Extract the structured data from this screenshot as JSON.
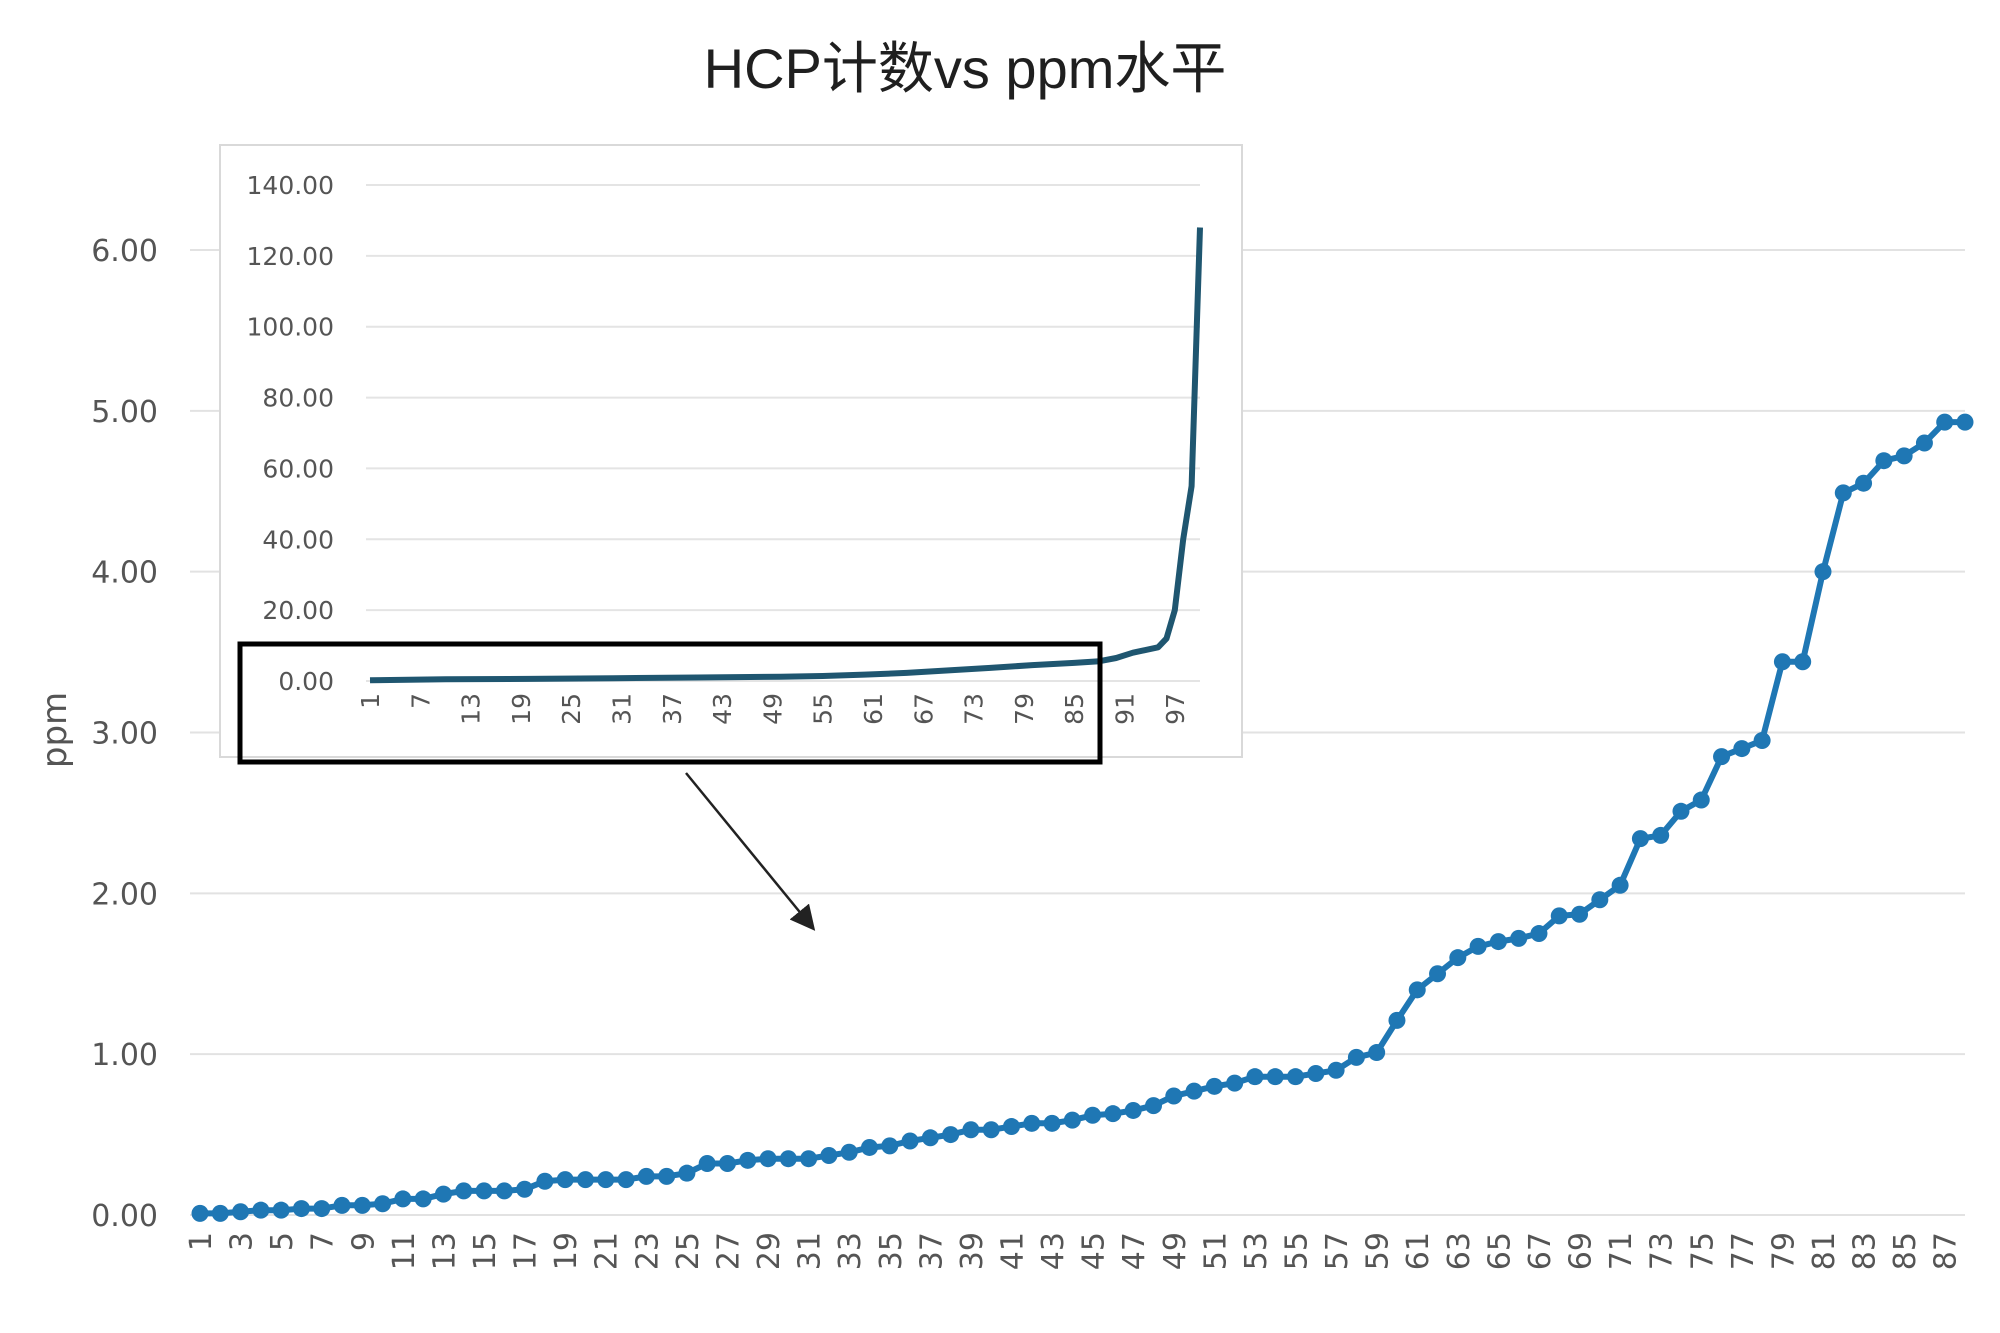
{
  "chart_data": [
    {
      "type": "line",
      "title": "HCP计数vs ppm水平",
      "ylabel": "ppm",
      "ylim": [
        0,
        6
      ],
      "yticks": [
        "0.00",
        "1.00",
        "2.00",
        "3.00",
        "4.00",
        "5.00",
        "6.00"
      ],
      "x": [
        1,
        2,
        3,
        4,
        5,
        6,
        7,
        8,
        9,
        10,
        11,
        12,
        13,
        14,
        15,
        16,
        17,
        18,
        19,
        20,
        21,
        22,
        23,
        24,
        25,
        26,
        27,
        28,
        29,
        30,
        31,
        32,
        33,
        34,
        35,
        36,
        37,
        38,
        39,
        40,
        41,
        42,
        43,
        44,
        45,
        46,
        47,
        48,
        49,
        50,
        51,
        52,
        53,
        54,
        55,
        56,
        57,
        58,
        59,
        60,
        61,
        62,
        63,
        64,
        65,
        66,
        67,
        68,
        69,
        70,
        71,
        72,
        73,
        74,
        75,
        76,
        77,
        78,
        79,
        80,
        81,
        82,
        83,
        84,
        85,
        86,
        87,
        88
      ],
      "xtick_labels": [
        "1",
        "3",
        "5",
        "7",
        "9",
        "11",
        "13",
        "15",
        "17",
        "19",
        "21",
        "23",
        "25",
        "27",
        "29",
        "31",
        "33",
        "35",
        "37",
        "39",
        "41",
        "43",
        "45",
        "47",
        "49",
        "51",
        "53",
        "55",
        "57",
        "59",
        "61",
        "63",
        "65",
        "67",
        "69",
        "71",
        "73",
        "75",
        "77",
        "79",
        "81",
        "83",
        "85",
        "87"
      ],
      "series": [
        {
          "values": [
            0.01,
            0.01,
            0.02,
            0.03,
            0.03,
            0.04,
            0.04,
            0.06,
            0.06,
            0.07,
            0.1,
            0.1,
            0.13,
            0.15,
            0.15,
            0.15,
            0.16,
            0.21,
            0.22,
            0.22,
            0.22,
            0.22,
            0.24,
            0.24,
            0.26,
            0.32,
            0.32,
            0.34,
            0.35,
            0.35,
            0.35,
            0.37,
            0.39,
            0.42,
            0.43,
            0.46,
            0.48,
            0.5,
            0.53,
            0.53,
            0.55,
            0.57,
            0.57,
            0.59,
            0.62,
            0.63,
            0.65,
            0.68,
            0.74,
            0.77,
            0.8,
            0.82,
            0.86,
            0.86,
            0.86,
            0.88,
            0.9,
            0.98,
            1.01,
            1.21,
            1.4,
            1.5,
            1.6,
            1.67,
            1.7,
            1.72,
            1.75,
            1.86,
            1.87,
            1.96,
            2.05,
            2.34,
            2.36,
            2.51,
            2.58,
            2.85,
            2.9,
            2.95,
            3.44,
            3.44,
            4.0,
            4.49,
            4.55,
            4.69,
            4.72,
            4.8,
            4.93,
            4.93
          ]
        }
      ],
      "grid": true,
      "line_color": "#1f77b4"
    },
    {
      "type": "line",
      "title": "",
      "ylim": [
        0,
        140
      ],
      "yticks": [
        "0.00",
        "20.00",
        "40.00",
        "60.00",
        "80.00",
        "100.00",
        "120.00",
        "140.00"
      ],
      "x_range": [
        1,
        100
      ],
      "xtick_labels": [
        "1",
        "7",
        "13",
        "19",
        "25",
        "31",
        "37",
        "43",
        "49",
        "55",
        "61",
        "67",
        "73",
        "79",
        "85",
        "91",
        "97"
      ],
      "series": [
        {
          "points": [
            [
              1,
              0.2
            ],
            [
              10,
              0.5
            ],
            [
              20,
              0.6
            ],
            [
              30,
              0.8
            ],
            [
              40,
              1.0
            ],
            [
              50,
              1.2
            ],
            [
              55,
              1.4
            ],
            [
              60,
              1.8
            ],
            [
              65,
              2.3
            ],
            [
              70,
              3.0
            ],
            [
              75,
              3.7
            ],
            [
              80,
              4.5
            ],
            [
              85,
              5.1
            ],
            [
              88,
              5.6
            ],
            [
              90,
              6.5
            ],
            [
              92,
              8.0
            ],
            [
              95,
              9.5
            ],
            [
              96,
              12
            ],
            [
              97,
              20
            ],
            [
              98,
              40
            ],
            [
              99,
              55
            ],
            [
              100,
              128
            ]
          ]
        }
      ],
      "grid": true,
      "line_color": "#1f5670"
    }
  ]
}
